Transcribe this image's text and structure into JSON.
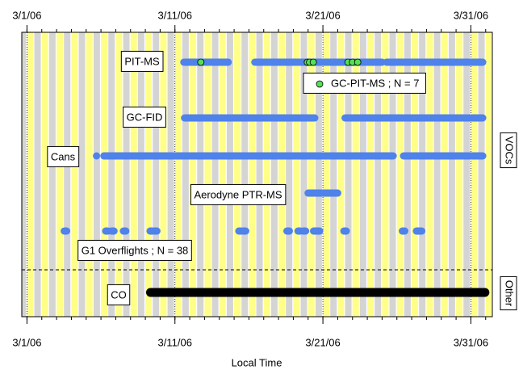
{
  "chart_data": {
    "type": "timeline",
    "xlabel": "Local Time",
    "xlim": [
      -0.35,
      31.45
    ],
    "xticks": [
      {
        "value": 0,
        "label": "3/1/06"
      },
      {
        "value": 10,
        "label": "3/11/06"
      },
      {
        "value": 20,
        "label": "3/21/06"
      },
      {
        "value": 30,
        "label": "3/31/06"
      }
    ],
    "groups": [
      {
        "name": "VOCs",
        "color": "#3d6fe0",
        "series": [
          {
            "name": "PIT-MS",
            "color": "#4f82ea",
            "segments": [
              [
                10.6,
                13.6
              ],
              [
                15.4,
                24.0
              ],
              [
                24.3,
                30.8
              ]
            ]
          },
          {
            "name": "GC-PIT-MS ; N = 7",
            "color": "#55e055",
            "points": [
              11.75,
              18.95,
              19.1,
              19.35,
              21.7,
              22.0,
              22.35
            ]
          },
          {
            "name": "GC-FID",
            "color": "#4f82ea",
            "segments": [
              [
                10.65,
                19.45
              ],
              [
                21.5,
                30.8
              ]
            ]
          },
          {
            "name": "Cans",
            "color": "#4f82ea",
            "segments": [
              [
                4.7,
                4.7
              ],
              [
                5.2,
                24.75
              ],
              [
                25.45,
                30.8
              ]
            ]
          },
          {
            "name": "Aerodyne PTR-MS",
            "color": "#4f82ea",
            "segments": [
              [
                19.0,
                21.0
              ]
            ]
          },
          {
            "name": "G1 Overflights ; N = 38",
            "color": "#4f82ea",
            "points": [
              2.6,
              5.4,
              5.8,
              6.6,
              8.4,
              8.7,
              14.4,
              14.7,
              17.65,
              18.4,
              18.75,
              19.45,
              19.7,
              21.5,
              25.45,
              26.4,
              26.6
            ]
          }
        ]
      },
      {
        "name": "Other",
        "color": "#000000",
        "series": [
          {
            "name": "CO",
            "color": "#000000",
            "segments": [
              [
                8.35,
                30.95
              ]
            ]
          }
        ]
      }
    ]
  }
}
